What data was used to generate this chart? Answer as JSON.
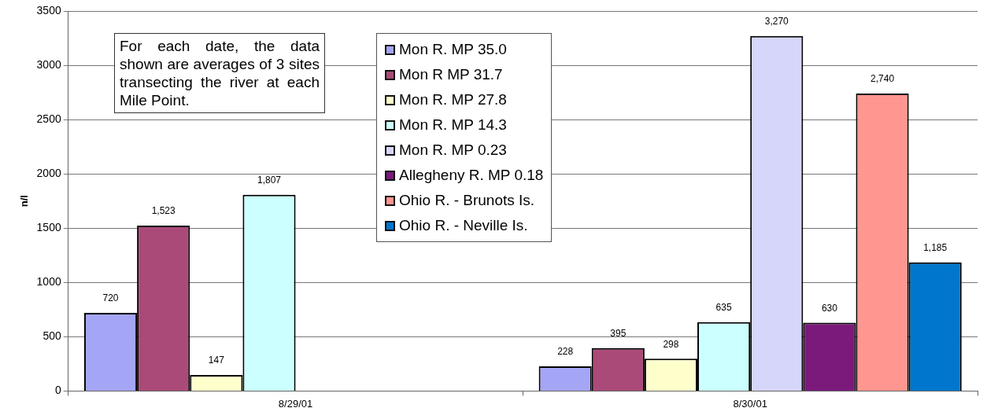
{
  "chart_data": {
    "type": "bar",
    "ylabel": "n/l",
    "categories": [
      "8/29/01",
      "8/30/01"
    ],
    "series": [
      {
        "name": "Mon R. MP 35.0",
        "color": "#a5a5f5",
        "values": [
          720,
          228
        ],
        "value_labels": [
          "720",
          "228"
        ]
      },
      {
        "name": "Mon R MP 31.7",
        "color": "#aa4a78",
        "values": [
          1523,
          395
        ],
        "value_labels": [
          "1,523",
          "395"
        ]
      },
      {
        "name": "Mon R. MP 27.8",
        "color": "#ffffcc",
        "values": [
          147,
          298
        ],
        "value_labels": [
          "147",
          "298"
        ]
      },
      {
        "name": "Mon R. MP 14.3",
        "color": "#ccffff",
        "values": [
          1807,
          635
        ],
        "value_labels": [
          "1,807",
          "635"
        ]
      },
      {
        "name": "Mon R. MP 0.23",
        "color": "#d6d6fb",
        "values": [
          null,
          3270
        ],
        "value_labels": [
          null,
          "3,270"
        ]
      },
      {
        "name": "Allegheny R. MP 0.18",
        "color": "#7b1a7b",
        "values": [
          null,
          630
        ],
        "value_labels": [
          null,
          "630"
        ]
      },
      {
        "name": "Ohio R. - Brunots Is.",
        "color": "#ff968f",
        "values": [
          null,
          2740
        ],
        "value_labels": [
          null,
          "2,740"
        ]
      },
      {
        "name": "Ohio R. - Neville Is.",
        "color": "#0077cc",
        "values": [
          null,
          1185
        ],
        "value_labels": [
          null,
          "1,185"
        ]
      }
    ],
    "ylim": [
      0,
      3500
    ],
    "yticks": [
      0,
      500,
      1000,
      1500,
      2000,
      2500,
      3000,
      3500
    ],
    "grid": "y",
    "legend": "top",
    "annotations": [
      "For each date, the data shown are averages of 3 sites transecting the river at each Mile Point."
    ]
  }
}
